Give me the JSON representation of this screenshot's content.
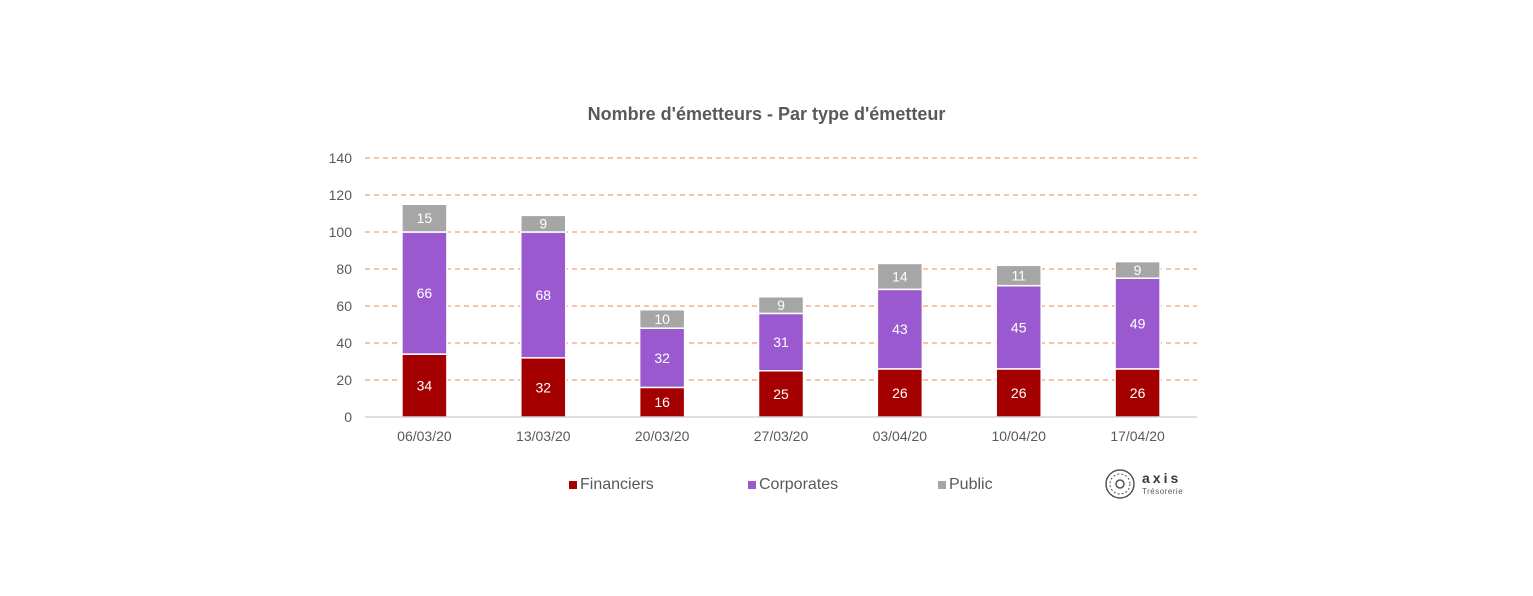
{
  "chart_data": {
    "type": "bar",
    "stacked": true,
    "title": "Nombre d'émetteurs - Par type d'émetteur",
    "categories": [
      "06/03/20",
      "13/03/20",
      "20/03/20",
      "27/03/20",
      "03/04/20",
      "10/04/20",
      "17/04/20"
    ],
    "series": [
      {
        "name": "Financiers",
        "values": [
          34,
          32,
          16,
          25,
          26,
          26,
          26
        ],
        "color": "#A50000"
      },
      {
        "name": "Corporates",
        "values": [
          66,
          68,
          32,
          31,
          43,
          45,
          49
        ],
        "color": "#9B59D0"
      },
      {
        "name": "Public",
        "values": [
          15,
          9,
          10,
          9,
          14,
          11,
          9
        ],
        "color": "#A6A6A6"
      }
    ],
    "ylim": [
      0,
      140
    ],
    "yticks": [
      0,
      20,
      40,
      60,
      80,
      100,
      120,
      140
    ],
    "grid": true,
    "grid_color": "#F08A4B",
    "legend_position": "bottom"
  },
  "logo": {
    "name": "axis",
    "subtitle": "Trésorerie"
  }
}
